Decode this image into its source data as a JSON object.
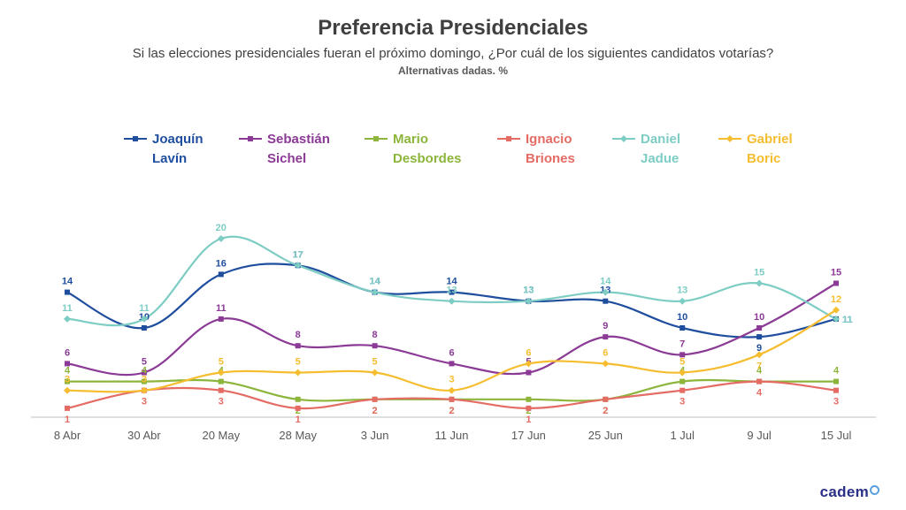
{
  "chart_data": {
    "type": "line",
    "title": "Preferencia Presidenciales",
    "subtitle": "Si las elecciones presidenciales fueran el próximo domingo, ¿Por cuál de los siguientes candidatos votarías?",
    "note": "Alternativas dadas. %",
    "categories": [
      "8 Abr",
      "30 Abr",
      "20 May",
      "28 May",
      "3 Jun",
      "11 Jun",
      "17 Jun",
      "25 Jun",
      "1 Jul",
      "9 Jul",
      "15 Jul"
    ],
    "ylim": [
      0,
      22
    ],
    "legend_position": "top",
    "series": [
      {
        "name_line1": "Joaquín",
        "name_line2": "Lavín",
        "color": "#1f4e9e",
        "marker": "square",
        "values": [
          14,
          10,
          16,
          17,
          14,
          14,
          13,
          13,
          10,
          9,
          11
        ]
      },
      {
        "name_line1": "Sebastián",
        "name_line2": "Sichel",
        "color": "#8b3a95",
        "marker": "square",
        "values": [
          6,
          5,
          11,
          8,
          8,
          6,
          5,
          9,
          7,
          10,
          15
        ]
      },
      {
        "name_line1": "Mario",
        "name_line2": "Desbordes",
        "color": "#8db53c",
        "marker": "square",
        "values": [
          4,
          4,
          4,
          2,
          2,
          2,
          2,
          2,
          4,
          4,
          4
        ]
      },
      {
        "name_line1": "Ignacio",
        "name_line2": "Briones",
        "color": "#e46c64",
        "marker": "square",
        "values": [
          1,
          3,
          3,
          1,
          2,
          2,
          1,
          2,
          3,
          4,
          3
        ]
      },
      {
        "name_line1": "Daniel",
        "name_line2": "Jadue",
        "color": "#7ecdc4",
        "marker": "diamond",
        "values": [
          11,
          11,
          20,
          17,
          14,
          13,
          13,
          14,
          13,
          15,
          11
        ]
      },
      {
        "name_line1": "Gabriel",
        "name_line2": "Boric",
        "color": "#f5bd2f",
        "marker": "diamond",
        "values": [
          3,
          3,
          5,
          5,
          5,
          3,
          6,
          6,
          5,
          7,
          12
        ]
      }
    ]
  },
  "logo": {
    "text": "cadem"
  }
}
